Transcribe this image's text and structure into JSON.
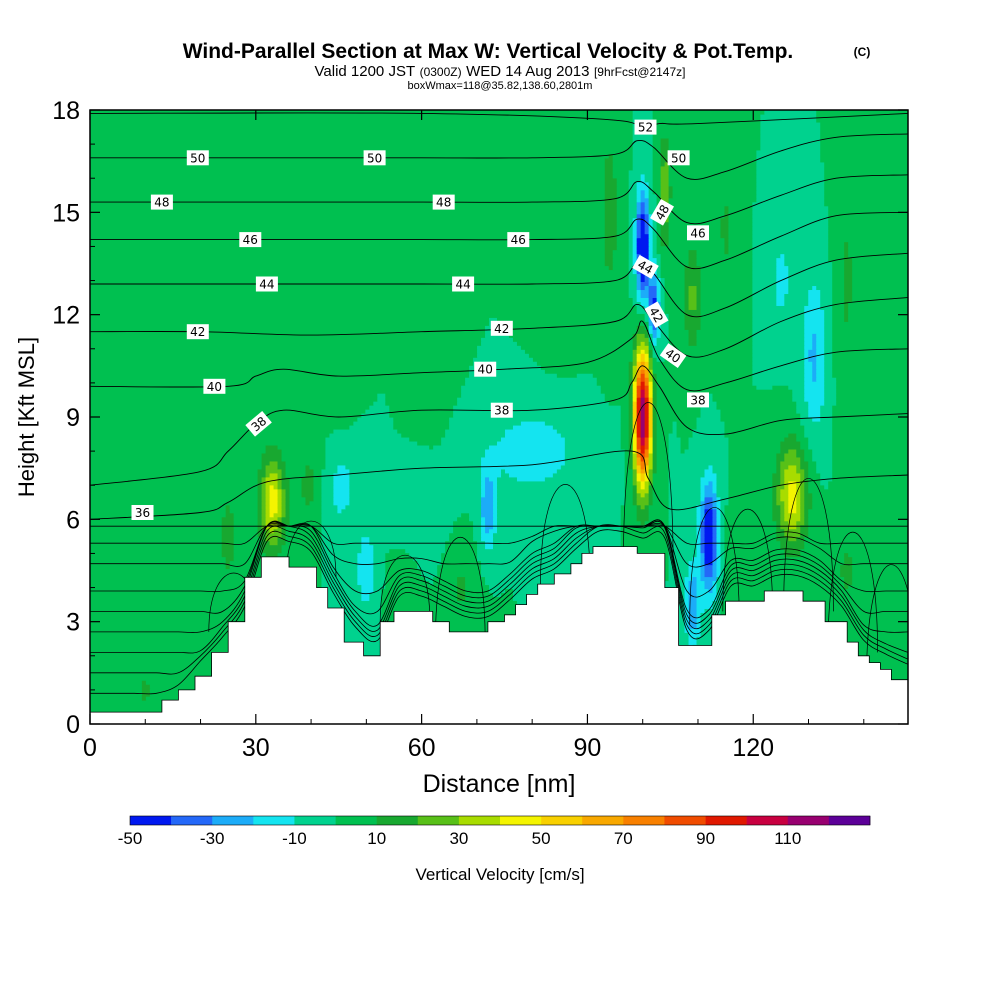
{
  "header": {
    "title": "Wind-Parallel Section at Max W: Vertical Velocity & Pot.Temp.",
    "copyright": "(C)",
    "valid_prefix": "Valid 1200 JST",
    "valid_utc": "(0300Z)",
    "valid_date": "WED 14 Aug 2013",
    "forecast": "[9hrFcst@2147z]",
    "boxwmax": "boxWmax=118@35.82,138.60,2801m"
  },
  "chart_data": {
    "type": "contour-section",
    "xlabel": "Distance [nm]",
    "ylabel": "Height [Kft MSL]",
    "xlim": [
      0,
      148
    ],
    "ylim": [
      0,
      18
    ],
    "x_ticks": [
      0,
      30,
      60,
      90,
      120
    ],
    "y_ticks": [
      0,
      3,
      6,
      9,
      12,
      15,
      18
    ],
    "colorbar": {
      "label": "Vertical Velocity [cm/s]",
      "tick_labels": [
        -50,
        -30,
        -10,
        10,
        30,
        50,
        70,
        90,
        110
      ],
      "levels": [
        -50,
        -40,
        -30,
        -20,
        -10,
        0,
        10,
        20,
        30,
        40,
        50,
        60,
        70,
        80,
        90,
        100,
        110,
        120
      ],
      "colors": [
        "#0018f0",
        "#2468f8",
        "#1cacf8",
        "#14e4f0",
        "#00d28e",
        "#00c050",
        "#18a830",
        "#58c018",
        "#a8dc00",
        "#f4f400",
        "#f8d000",
        "#f8a800",
        "#f88000",
        "#f04c00",
        "#e01800",
        "#c80040",
        "#980070",
        "#5c0098"
      ]
    },
    "background_w": 0,
    "terrain_kft": [
      [
        0,
        0.35
      ],
      [
        10,
        0.35
      ],
      [
        13,
        0.7
      ],
      [
        16,
        1.0
      ],
      [
        19,
        1.4
      ],
      [
        22,
        2.1
      ],
      [
        25,
        3.0
      ],
      [
        28,
        4.3
      ],
      [
        31,
        4.9
      ],
      [
        35,
        4.9
      ],
      [
        36,
        4.6
      ],
      [
        39,
        4.6
      ],
      [
        41,
        4.0
      ],
      [
        43,
        3.4
      ],
      [
        45,
        3.4
      ],
      [
        46,
        2.4
      ],
      [
        49,
        2.4
      ],
      [
        49.5,
        2.0
      ],
      [
        52,
        2.0
      ],
      [
        52.5,
        3.0
      ],
      [
        55,
        3.3
      ],
      [
        60,
        3.3
      ],
      [
        62,
        3.0
      ],
      [
        65,
        2.7
      ],
      [
        71,
        2.7
      ],
      [
        72,
        3.0
      ],
      [
        75,
        3.2
      ],
      [
        77,
        3.5
      ],
      [
        79,
        3.8
      ],
      [
        81,
        4.1
      ],
      [
        84,
        4.4
      ],
      [
        87,
        4.7
      ],
      [
        89,
        5.0
      ],
      [
        91,
        5.2
      ],
      [
        96,
        5.2
      ],
      [
        98,
        5.2
      ],
      [
        99,
        5.0
      ],
      [
        103,
        5.0
      ],
      [
        104,
        4.0
      ],
      [
        106,
        4.0
      ],
      [
        106.5,
        2.3
      ],
      [
        112,
        2.3
      ],
      [
        112.5,
        3.2
      ],
      [
        115,
        3.6
      ],
      [
        121,
        3.6
      ],
      [
        122,
        3.9
      ],
      [
        128,
        3.9
      ],
      [
        129,
        3.6
      ],
      [
        132,
        3.6
      ],
      [
        133,
        3.0
      ],
      [
        136,
        3.0
      ],
      [
        137,
        2.4
      ],
      [
        139,
        2.0
      ],
      [
        141,
        1.8
      ],
      [
        143,
        1.6
      ],
      [
        145,
        1.3
      ],
      [
        148,
        1.3
      ]
    ],
    "w_features": [
      {
        "x": 100,
        "y": 9.0,
        "sx": 1.6,
        "sy": 2.0,
        "amp": 120
      },
      {
        "x": 33,
        "y": 6.5,
        "sx": 2.3,
        "sy": 1.4,
        "amp": 45
      },
      {
        "x": 127,
        "y": 6.7,
        "sx": 2.8,
        "sy": 1.5,
        "amp": 45
      },
      {
        "x": 104,
        "y": 15.6,
        "sx": 1.0,
        "sy": 1.6,
        "amp": 30
      },
      {
        "x": 109,
        "y": 12.5,
        "sx": 1.6,
        "sy": 1.6,
        "amp": 22
      },
      {
        "x": 100,
        "y": 14.0,
        "sx": 1.2,
        "sy": 1.6,
        "amp": -60
      },
      {
        "x": 102,
        "y": 12.2,
        "sx": 1.0,
        "sy": 1.1,
        "amp": -45
      },
      {
        "x": 112,
        "y": 5.5,
        "sx": 1.6,
        "sy": 1.6,
        "amp": -55
      },
      {
        "x": 109,
        "y": 3.5,
        "sx": 1.4,
        "sy": 1.2,
        "amp": -30
      },
      {
        "x": 50,
        "y": 4.5,
        "sx": 1.8,
        "sy": 1.2,
        "amp": -18
      },
      {
        "x": 72,
        "y": 6.3,
        "sx": 1.5,
        "sy": 1.2,
        "amp": -28
      },
      {
        "x": 80,
        "y": 8.0,
        "sx": 9.0,
        "sy": 1.3,
        "amp": -16
      },
      {
        "x": 45,
        "y": 7.0,
        "sx": 4.0,
        "sy": 1.5,
        "amp": -14
      },
      {
        "x": 60,
        "y": 6.0,
        "sx": 4.0,
        "sy": 1.2,
        "amp": -10
      },
      {
        "x": 131,
        "y": 10.8,
        "sx": 2.3,
        "sy": 2.3,
        "amp": -22
      },
      {
        "x": 125,
        "y": 13.0,
        "sx": 2.2,
        "sy": 1.5,
        "amp": -13
      },
      {
        "x": 23,
        "y": 14.5,
        "sx": 3.0,
        "sy": 2.5,
        "amp": 9
      },
      {
        "x": 45,
        "y": 11.0,
        "sx": 3.0,
        "sy": 2.5,
        "amp": 10
      },
      {
        "x": 62,
        "y": 13.0,
        "sx": 3.5,
        "sy": 3.0,
        "amp": 9
      },
      {
        "x": 85,
        "y": 15.0,
        "sx": 4.0,
        "sy": 3.0,
        "amp": 9
      },
      {
        "x": 94,
        "y": 15.0,
        "sx": 2.0,
        "sy": 3.0,
        "amp": 14
      },
      {
        "x": 115,
        "y": 14.5,
        "sx": 2.0,
        "sy": 2.5,
        "amp": 11
      },
      {
        "x": 137,
        "y": 13.0,
        "sx": 2.0,
        "sy": 4.0,
        "amp": 11
      },
      {
        "x": 142,
        "y": 16.0,
        "sx": 1.8,
        "sy": 2.0,
        "amp": 10
      },
      {
        "x": 40,
        "y": 7.0,
        "sx": 3.0,
        "sy": 1.5,
        "amp": 14
      },
      {
        "x": 25,
        "y": 5.5,
        "sx": 2.0,
        "sy": 1.8,
        "amp": 13
      },
      {
        "x": 67,
        "y": 4.0,
        "sx": 3.0,
        "sy": 1.3,
        "amp": 11
      },
      {
        "x": 137,
        "y": 4.5,
        "sx": 3.0,
        "sy": 1.5,
        "amp": 11
      },
      {
        "x": 57,
        "y": 3.8,
        "sx": 2.5,
        "sy": 1.2,
        "amp": 10
      },
      {
        "x": 10,
        "y": 1.0,
        "sx": 1.2,
        "sy": 0.8,
        "amp": 12
      },
      {
        "x": 117,
        "y": 4.5,
        "sx": 2.0,
        "sy": 1.5,
        "amp": 10
      }
    ],
    "theta_series": [
      {
        "name": "36",
        "x": [
          0,
          20,
          25,
          32,
          45,
          60,
          80,
          98,
          101,
          105,
          115,
          125,
          135,
          148
        ],
        "y": [
          6.0,
          6.2,
          6.5,
          7.1,
          7.3,
          7.5,
          7.6,
          8.0,
          7.2,
          6.3,
          6.6,
          7.0,
          7.2,
          7.3
        ]
      },
      {
        "name": "38",
        "x": [
          0,
          20,
          25,
          30,
          35,
          45,
          60,
          80,
          95,
          98,
          100,
          103,
          108,
          115,
          125,
          135,
          148
        ],
        "y": [
          7.0,
          7.4,
          8.0,
          8.8,
          9.2,
          9.0,
          9.2,
          9.2,
          9.5,
          10.0,
          10.5,
          9.9,
          8.7,
          8.5,
          8.9,
          9.0,
          9.1
        ]
      },
      {
        "name": "40",
        "x": [
          0,
          25,
          30,
          35,
          45,
          60,
          75,
          90,
          98,
          100,
          103,
          108,
          115,
          125,
          135,
          148
        ],
        "y": [
          9.9,
          9.9,
          10.2,
          10.4,
          10.2,
          10.3,
          10.4,
          10.6,
          11.3,
          11.8,
          10.7,
          9.8,
          10.0,
          10.5,
          10.9,
          11.0
        ]
      },
      {
        "name": "42",
        "x": [
          0,
          20,
          40,
          60,
          80,
          95,
          99,
          102,
          108,
          115,
          125,
          135,
          148
        ],
        "y": [
          11.5,
          11.5,
          11.4,
          11.5,
          11.6,
          11.8,
          12.3,
          11.8,
          10.8,
          11.0,
          11.8,
          12.3,
          12.5
        ]
      },
      {
        "name": "44",
        "x": [
          0,
          20,
          40,
          60,
          80,
          95,
          99,
          102,
          108,
          115,
          125,
          135,
          148
        ],
        "y": [
          12.9,
          12.9,
          12.9,
          12.9,
          12.9,
          13.0,
          13.5,
          13.2,
          12.0,
          12.2,
          13.0,
          13.6,
          13.8
        ]
      },
      {
        "name": "46",
        "x": [
          0,
          20,
          40,
          60,
          80,
          95,
          99,
          102,
          108,
          115,
          125,
          135,
          148
        ],
        "y": [
          14.2,
          14.2,
          14.2,
          14.2,
          14.2,
          14.3,
          14.8,
          14.5,
          13.4,
          13.6,
          14.3,
          14.9,
          15.0
        ]
      },
      {
        "name": "48",
        "x": [
          0,
          20,
          40,
          60,
          80,
          95,
          99,
          102,
          108,
          115,
          125,
          135,
          148
        ],
        "y": [
          15.3,
          15.3,
          15.3,
          15.3,
          15.3,
          15.4,
          15.9,
          15.6,
          14.7,
          14.9,
          15.5,
          16.0,
          16.1
        ]
      },
      {
        "name": "50",
        "x": [
          0,
          20,
          40,
          60,
          80,
          95,
          99,
          102,
          108,
          115,
          125,
          135,
          148
        ],
        "y": [
          16.6,
          16.6,
          16.6,
          16.6,
          16.6,
          16.7,
          17.1,
          16.9,
          16.0,
          16.2,
          16.8,
          17.2,
          17.3
        ]
      },
      {
        "name": "52",
        "x": [
          0,
          60,
          95,
          99,
          103,
          110,
          148
        ],
        "y": [
          17.9,
          17.9,
          17.7,
          17.4,
          17.6,
          17.6,
          17.9
        ]
      }
    ],
    "theta_labels": [
      {
        "text": "50",
        "x": 19.5,
        "y": 16.6,
        "rot": 0
      },
      {
        "text": "50",
        "x": 51.5,
        "y": 16.6,
        "rot": 0
      },
      {
        "text": "50",
        "x": 106.5,
        "y": 16.6,
        "rot": 0
      },
      {
        "text": "52",
        "x": 100.5,
        "y": 17.5,
        "rot": 0
      },
      {
        "text": "48",
        "x": 13,
        "y": 15.3,
        "rot": 0
      },
      {
        "text": "48",
        "x": 64,
        "y": 15.3,
        "rot": 0
      },
      {
        "text": "48",
        "x": 103.5,
        "y": 15.0,
        "rot": -60
      },
      {
        "text": "46",
        "x": 29,
        "y": 14.2,
        "rot": 0
      },
      {
        "text": "46",
        "x": 77.5,
        "y": 14.2,
        "rot": 0
      },
      {
        "text": "46",
        "x": 110,
        "y": 14.4,
        "rot": 0
      },
      {
        "text": "44",
        "x": 32,
        "y": 12.9,
        "rot": 0
      },
      {
        "text": "44",
        "x": 67.5,
        "y": 12.9,
        "rot": 0
      },
      {
        "text": "44",
        "x": 100.5,
        "y": 13.4,
        "rot": 30
      },
      {
        "text": "42",
        "x": 19.5,
        "y": 11.5,
        "rot": 0
      },
      {
        "text": "42",
        "x": 74.5,
        "y": 11.6,
        "rot": 0
      },
      {
        "text": "42",
        "x": 102.5,
        "y": 12.0,
        "rot": 60
      },
      {
        "text": "40",
        "x": 22.5,
        "y": 9.9,
        "rot": 0
      },
      {
        "text": "40",
        "x": 71.5,
        "y": 10.4,
        "rot": 0
      },
      {
        "text": "40",
        "x": 105.5,
        "y": 10.8,
        "rot": 35
      },
      {
        "text": "38",
        "x": 30.5,
        "y": 8.8,
        "rot": -40
      },
      {
        "text": "38",
        "x": 74.5,
        "y": 9.2,
        "rot": 0
      },
      {
        "text": "38",
        "x": 110,
        "y": 9.5,
        "rot": 0
      },
      {
        "text": "36",
        "x": 9.5,
        "y": 6.2,
        "rot": 0
      }
    ]
  }
}
